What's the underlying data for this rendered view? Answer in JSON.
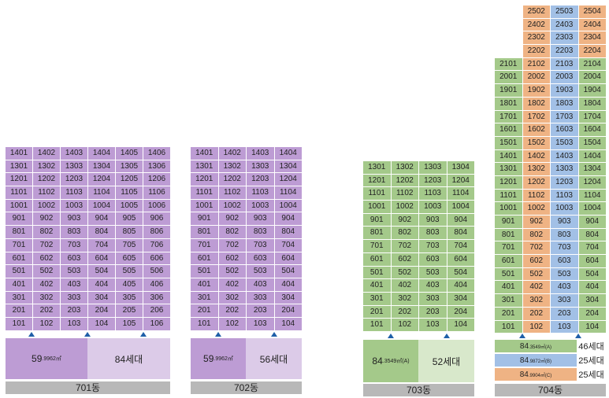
{
  "colors": {
    "purple": "#bd9cd4",
    "purple_light": "#dccbe8",
    "green": "#a4c98a",
    "green_light": "#d8e8cb",
    "orange": "#efb384",
    "blue": "#a2c0e6",
    "name_bar": "#b8b8b8",
    "arrow": "#1f5fa8"
  },
  "buildings": [
    {
      "name": "701동",
      "floors": 14,
      "units": 6,
      "unit_area": "59",
      "unit_area_small": ".9962㎡",
      "households": "84세대"
    },
    {
      "name": "702동",
      "floors": 14,
      "units": 4,
      "unit_area": "59",
      "unit_area_small": ".9962㎡",
      "households": "56세대"
    },
    {
      "name": "703동",
      "floors": 13,
      "units": 4,
      "unit_area": "84",
      "unit_area_small": ".3549㎡(A)",
      "households": "52세대"
    },
    {
      "name": "704동",
      "floors": 25,
      "units": 4,
      "legend": [
        {
          "area": "84",
          "area_small": ".3549㎡(A)",
          "count": "46세대"
        },
        {
          "area": "84",
          "area_small": ".9872㎡(B)",
          "count": "25세대"
        },
        {
          "area": "84",
          "area_small": ".9904㎡(C)",
          "count": "25세대"
        }
      ]
    }
  ]
}
